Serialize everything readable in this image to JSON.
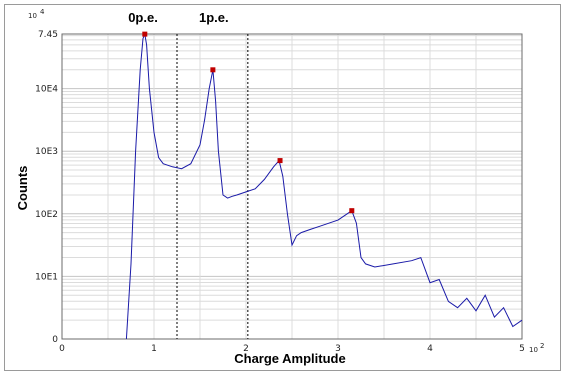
{
  "chart_data": {
    "type": "line",
    "xlabel": "Charge Amplitude",
    "ylabel": "Counts",
    "x_multiplier_label": "10",
    "x_multiplier_exp": "2",
    "y_multiplier_label": "10",
    "y_multiplier_exp": "4",
    "xlim": [
      0,
      5
    ],
    "x_ticks": [
      "0",
      "1",
      "2",
      "3",
      "4",
      "5"
    ],
    "y_scale": "log",
    "ylim_log10": [
      0,
      4.872
    ],
    "y_ticks": [
      {
        "label": "0",
        "log10": 0
      },
      {
        "label": "10E1",
        "log10": 1
      },
      {
        "label": "10E2",
        "log10": 2
      },
      {
        "label": "10E3",
        "log10": 3
      },
      {
        "label": "10E4",
        "log10": 4
      },
      {
        "label": "7.45",
        "log10": 4.872
      }
    ],
    "grid": true,
    "line_color": "#1a1aa8",
    "peak_marker_color": "#c00000",
    "markers": [
      {
        "label": "0p.e.",
        "x": 1.25
      },
      {
        "label": "1p.e.",
        "x": 2.02
      }
    ],
    "series": [
      {
        "x": [
          0.7,
          0.75,
          0.8,
          0.85,
          0.88,
          0.9,
          0.92,
          0.95,
          1.0,
          1.05,
          1.1,
          1.2,
          1.3,
          1.4,
          1.5,
          1.55,
          1.6,
          1.64,
          1.67,
          1.7,
          1.75,
          1.8,
          1.85,
          1.9,
          2.0,
          2.1,
          2.2,
          2.3,
          2.36,
          2.4,
          2.45,
          2.5,
          2.55,
          2.6,
          2.7,
          2.8,
          2.9,
          3.0,
          3.1,
          3.15,
          3.2,
          3.25,
          3.3,
          3.4,
          3.6,
          3.8,
          3.9,
          4.0,
          4.1,
          4.2,
          4.3,
          4.4,
          4.5,
          4.6,
          4.7,
          4.8,
          4.9,
          5.0
        ],
        "y_log10": [
          0.0,
          1.2,
          3.0,
          4.3,
          4.8,
          4.87,
          4.7,
          4.0,
          3.3,
          2.9,
          2.8,
          2.75,
          2.72,
          2.8,
          3.1,
          3.5,
          4.0,
          4.3,
          3.8,
          3.0,
          2.3,
          2.25,
          2.28,
          2.3,
          2.35,
          2.4,
          2.55,
          2.75,
          2.85,
          2.6,
          2.0,
          1.5,
          1.65,
          1.7,
          1.75,
          1.8,
          1.85,
          1.9,
          2.0,
          2.05,
          1.85,
          1.3,
          1.2,
          1.15,
          1.2,
          1.25,
          1.3,
          0.9,
          0.95,
          0.6,
          0.5,
          0.65,
          0.45,
          0.7,
          0.35,
          0.5,
          0.2,
          0.3
        ],
        "peaks": [
          {
            "x": 0.9,
            "y_log10": 4.87
          },
          {
            "x": 1.64,
            "y_log10": 4.3
          },
          {
            "x": 2.37,
            "y_log10": 2.85
          },
          {
            "x": 3.15,
            "y_log10": 2.05
          }
        ]
      }
    ]
  }
}
